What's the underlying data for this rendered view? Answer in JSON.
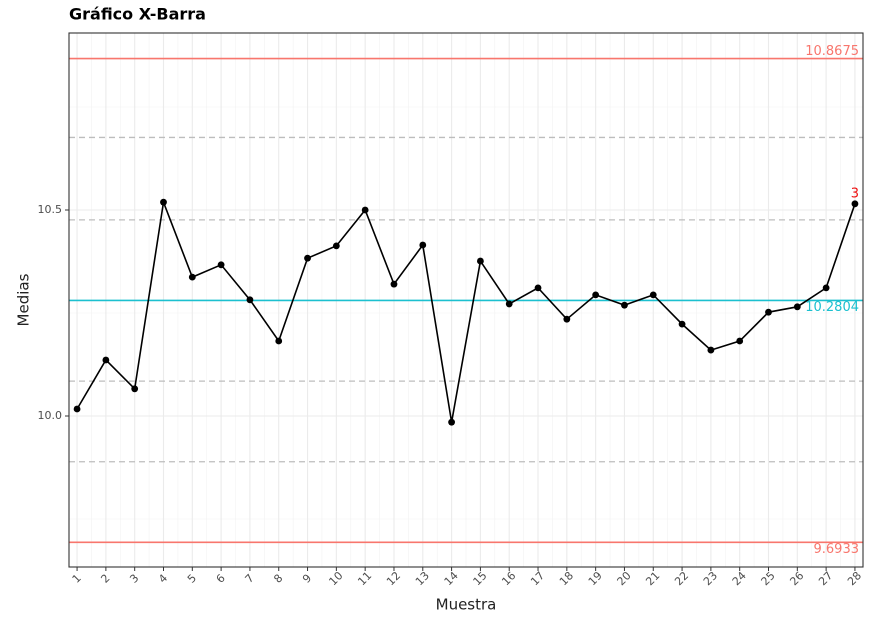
{
  "chart_data": {
    "type": "line",
    "title": "Gráfico X-Barra",
    "x_label": "Muestra",
    "y_label": "Medias",
    "x": [
      1,
      2,
      3,
      4,
      5,
      6,
      7,
      8,
      9,
      10,
      11,
      12,
      13,
      14,
      15,
      16,
      17,
      18,
      19,
      20,
      21,
      22,
      23,
      24,
      25,
      26,
      27,
      28
    ],
    "series": [
      {
        "color": "#000000",
        "values": [
          10.017,
          10.136,
          10.066,
          10.519,
          10.337,
          10.367,
          10.282,
          10.182,
          10.383,
          10.413,
          10.5,
          10.32,
          10.415,
          9.985,
          10.376,
          10.272,
          10.311,
          10.235,
          10.294,
          10.269,
          10.294,
          10.223,
          10.16,
          10.182,
          10.252,
          10.265,
          10.311,
          10.515
        ]
      }
    ],
    "ucl": 10.8675,
    "cl": 10.2804,
    "lcl": 9.6933,
    "limit_color": "#f8766d",
    "center_color": "#1cc0cf",
    "sigma_lines": [
      10.6761,
      10.4761,
      10.0847,
      9.889
    ],
    "annotations": [
      {
        "text": "3",
        "x": 28,
        "color": "#ee1111"
      }
    ],
    "xlim": [
      0.72,
      28.28
    ],
    "ylim": [
      9.6335,
      10.9296
    ],
    "xticks": [
      1,
      2,
      3,
      4,
      5,
      6,
      7,
      8,
      9,
      10,
      11,
      12,
      13,
      14,
      15,
      16,
      17,
      18,
      19,
      20,
      21,
      22,
      23,
      24,
      25,
      26,
      27,
      28
    ],
    "yticks": [
      {
        "value": 10,
        "label": "10.0"
      },
      10.5
    ],
    "minor_yticks": [
      9.75,
      10.25,
      10.75
    ],
    "grid": true
  }
}
